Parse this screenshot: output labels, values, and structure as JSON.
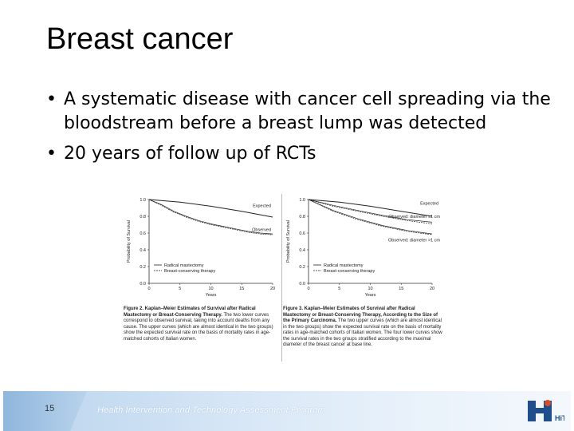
{
  "slide": {
    "title": "Breast cancer",
    "bullets": [
      "A systematic disease with cancer cell spreading via the bloodstream before a breast lump was detected",
      "20 years of follow up of RCTs"
    ],
    "slide_number": "15",
    "footer_program": "Health Intervention and Technology Assessment Program",
    "logo_text": "HiTAP"
  },
  "figures": [
    {
      "caption_title": "Figure 2. Kaplan–Meier Estimates of Survival after Radical Mastectomy or Breast-Conserving Therapy.",
      "caption_body": "The two lower curves correspond to observed survival, taking into account deaths from any cause. The upper curves (which are almost identical in the two groups) show the expected survival rate on the basis of mortality rates in age-matched cohorts of Italian women."
    },
    {
      "caption_title": "Figure 3. Kaplan–Meier Estimates of Survival after Radical Mastectomy or Breast-Conserving Therapy, According to the Size of the Primary Carcinoma.",
      "caption_body": "The two upper curves (which are almost identical in the two groups) show the expected survival rate on the basis of mortality rates in age-matched cohorts of Italian women. The four lower curves show the survival rates in the two groups stratified according to the maximal diameter of the breast cancer at base line."
    }
  ],
  "chart_data": [
    {
      "type": "line",
      "title": "",
      "xlabel": "Years",
      "ylabel": "Probability of Survival",
      "xlim": [
        0,
        20
      ],
      "ylim": [
        0.0,
        1.0
      ],
      "xticks": [
        0,
        5,
        10,
        15,
        20
      ],
      "yticks": [
        0.0,
        0.2,
        0.4,
        0.6,
        0.8,
        1.0
      ],
      "yticklabels": [
        "0.0",
        "0.2",
        "0.4",
        "0.6",
        "0.8",
        "1.0"
      ],
      "legend": [
        "Radical mastectomy",
        "Breast-conserving therapy"
      ],
      "annotations": [
        "Expected",
        "Observed"
      ],
      "series": [
        {
          "name": "Expected",
          "x": [
            0,
            5,
            10,
            15,
            20
          ],
          "values": [
            1.0,
            0.97,
            0.92,
            0.86,
            0.79
          ]
        },
        {
          "name": "Radical mastectomy (observed)",
          "x": [
            0,
            2,
            4,
            6,
            8,
            10,
            12,
            14,
            16,
            18,
            20
          ],
          "values": [
            1.0,
            0.93,
            0.85,
            0.79,
            0.74,
            0.7,
            0.67,
            0.64,
            0.61,
            0.59,
            0.58
          ]
        },
        {
          "name": "Breast-conserving therapy (observed)",
          "x": [
            0,
            2,
            4,
            6,
            8,
            10,
            12,
            14,
            16,
            18,
            20
          ],
          "values": [
            1.0,
            0.94,
            0.86,
            0.8,
            0.75,
            0.71,
            0.68,
            0.65,
            0.62,
            0.6,
            0.59
          ]
        }
      ]
    },
    {
      "type": "line",
      "title": "",
      "xlabel": "Years",
      "ylabel": "Probability of Survival",
      "xlim": [
        0,
        20
      ],
      "ylim": [
        0.0,
        1.0
      ],
      "xticks": [
        0,
        5,
        10,
        15,
        20
      ],
      "yticks": [
        0.0,
        0.2,
        0.4,
        0.6,
        0.8,
        1.0
      ],
      "yticklabels": [
        "0.0",
        "0.2",
        "0.4",
        "0.6",
        "0.8",
        "1.0"
      ],
      "legend": [
        "Radical mastectomy",
        "Breast-conserving therapy"
      ],
      "annotations": [
        "Expected",
        "Observed: diameter ≤1 cm",
        "Observed: diameter >1 cm"
      ],
      "series": [
        {
          "name": "Expected",
          "x": [
            0,
            5,
            10,
            15,
            20
          ],
          "values": [
            1.0,
            0.97,
            0.92,
            0.86,
            0.8
          ]
        },
        {
          "name": "≤1 cm radical mastectomy",
          "x": [
            0,
            4,
            8,
            12,
            16,
            20
          ],
          "values": [
            1.0,
            0.92,
            0.86,
            0.8,
            0.75,
            0.71
          ]
        },
        {
          "name": "≤1 cm breast-conserving",
          "x": [
            0,
            4,
            8,
            12,
            16,
            20
          ],
          "values": [
            1.0,
            0.93,
            0.87,
            0.81,
            0.76,
            0.73
          ]
        },
        {
          "name": ">1 cm radical mastectomy",
          "x": [
            0,
            4,
            8,
            12,
            16,
            20
          ],
          "values": [
            1.0,
            0.86,
            0.76,
            0.68,
            0.62,
            0.58
          ]
        },
        {
          "name": ">1 cm breast-conserving",
          "x": [
            0,
            4,
            8,
            12,
            16,
            20
          ],
          "values": [
            1.0,
            0.87,
            0.77,
            0.69,
            0.63,
            0.59
          ]
        }
      ]
    }
  ]
}
